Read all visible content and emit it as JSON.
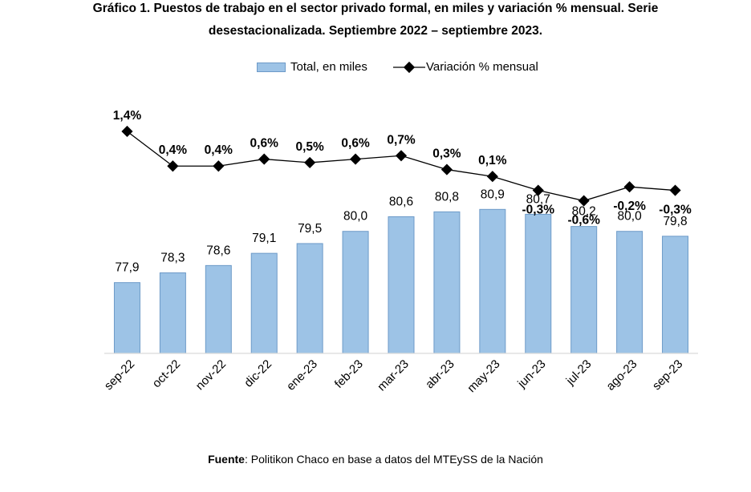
{
  "title_line1": "Gráfico 1. Puestos de trabajo en el sector privado formal, en miles y variación % mensual. Serie",
  "title_line2": "desestacionalizada. Septiembre 2022 – septiembre 2023.",
  "footer": {
    "source_label": "Fuente",
    "source_text": ": Politikon Chaco en base a datos del MTEySS de la Nación"
  },
  "colors": {
    "bar_fill": "#9dc3e6",
    "bar_stroke": "#6d9ac8",
    "line": "#000000",
    "axis": "#d9d9d9"
  },
  "chart_data": {
    "type": "bar",
    "title": "Gráfico 1. Puestos de trabajo en el sector privado formal, en miles y variación % mensual. Serie desestacionalizada. Septiembre 2022 – septiembre 2023.",
    "categories": [
      "sep-22",
      "oct-22",
      "nov-22",
      "dic-22",
      "ene-23",
      "feb-23",
      "mar-23",
      "abr-23",
      "may-23",
      "jun-23",
      "jul-23",
      "ago-23",
      "sep-23"
    ],
    "legend_position": "top-center",
    "grid": false,
    "series": [
      {
        "name": "Total, en miles",
        "type": "bar",
        "values": [
          77.9,
          78.3,
          78.6,
          79.1,
          79.5,
          80.0,
          80.6,
          80.8,
          80.9,
          80.7,
          80.2,
          80.0,
          79.8
        ],
        "labels": [
          "77,9",
          "78,3",
          "78,6",
          "79,1",
          "79,5",
          "80,0",
          "80,6",
          "80,8",
          "80,9",
          "80,7",
          "80,2",
          "80,0",
          "79,8"
        ],
        "ylim": [
          75.0,
          81.6
        ]
      },
      {
        "name": "Variación % mensual",
        "type": "line",
        "values": [
          1.4,
          0.4,
          0.4,
          0.6,
          0.5,
          0.6,
          0.7,
          0.3,
          0.1,
          -0.3,
          -0.6,
          -0.2,
          -0.3
        ],
        "labels": [
          "1,4%",
          "0,4%",
          "0,4%",
          "0,6%",
          "0,5%",
          "0,6%",
          "0,7%",
          "0,3%",
          "0,1%",
          "-0,3%",
          "-0,6%",
          "-0,2%",
          "-0,3%"
        ],
        "ylim": [
          -5.0,
          2.3
        ]
      }
    ]
  }
}
